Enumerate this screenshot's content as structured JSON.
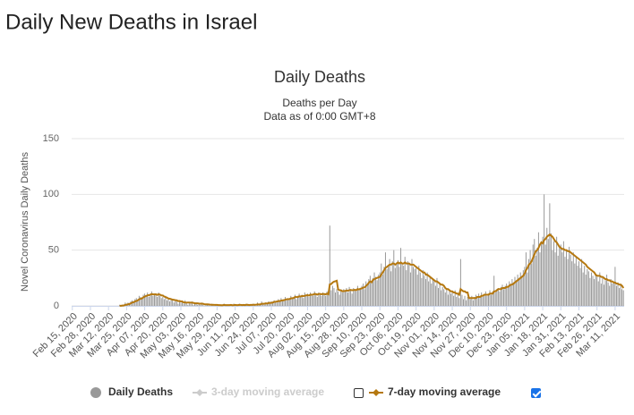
{
  "page_title": "Daily New Deaths in Israel",
  "chart_data": {
    "type": "bar_line",
    "title": "Daily Deaths",
    "subtitle": [
      "Deaths per Day",
      "Data as of 0:00 GMT+8"
    ],
    "y_label": "Novel Coronavirus Daily Deaths",
    "ylim": [
      0,
      150
    ],
    "yticks": [
      0,
      50,
      100,
      150
    ],
    "grid": true,
    "legend": "bottom",
    "categories": [
      "Feb 15, 2020",
      null,
      null,
      null,
      null,
      null,
      null,
      null,
      null,
      null,
      null,
      null,
      null,
      "Feb 28, 2020",
      null,
      null,
      null,
      null,
      null,
      null,
      null,
      null,
      null,
      null,
      null,
      null,
      "Mar 12, 2020",
      null,
      null,
      null,
      null,
      null,
      null,
      null,
      null,
      null,
      null,
      null,
      null,
      "Mar 25, 2020",
      null,
      null,
      null,
      null,
      null,
      null,
      null,
      null,
      null,
      null,
      null,
      null,
      "Apr 07, 2020",
      null,
      null,
      null,
      null,
      null,
      null,
      null,
      null,
      null,
      null,
      null,
      null,
      "Apr 20, 2020",
      null,
      null,
      null,
      null,
      null,
      null,
      null,
      null,
      null,
      null,
      null,
      null,
      "May 03, 2020",
      null,
      null,
      null,
      null,
      null,
      null,
      null,
      null,
      null,
      null,
      null,
      null,
      "May 16, 2020",
      null,
      null,
      null,
      null,
      null,
      null,
      null,
      null,
      null,
      null,
      null,
      null,
      "May 29, 2020",
      null,
      null,
      null,
      null,
      null,
      null,
      null,
      null,
      null,
      null,
      null,
      null,
      "Jun 11, 2020",
      null,
      null,
      null,
      null,
      null,
      null,
      null,
      null,
      null,
      null,
      null,
      null,
      "Jun 24, 2020",
      null,
      null,
      null,
      null,
      null,
      null,
      null,
      null,
      null,
      null,
      null,
      null,
      "Jul 07, 2020",
      null,
      null,
      null,
      null,
      null,
      null,
      null,
      null,
      null,
      null,
      null,
      null,
      "Jul 20, 2020",
      null,
      null,
      null,
      null,
      null,
      null,
      null,
      null,
      null,
      null,
      null,
      null,
      "Aug 02, 2020",
      null,
      null,
      null,
      null,
      null,
      null,
      null,
      null,
      null,
      null,
      null,
      null,
      "Aug 15, 2020",
      null,
      null,
      null,
      null,
      null,
      null,
      null,
      null,
      null,
      null,
      null,
      null,
      "Aug 28, 2020",
      null,
      null,
      null,
      null,
      null,
      null,
      null,
      null,
      null,
      null,
      null,
      null,
      "Sep 10, 2020",
      null,
      null,
      null,
      null,
      null,
      null,
      null,
      null,
      null,
      null,
      null,
      null,
      "Sep 23, 2020",
      null,
      null,
      null,
      null,
      null,
      null,
      null,
      null,
      null,
      null,
      null,
      null,
      "Oct 06, 2020",
      null,
      null,
      null,
      null,
      null,
      null,
      null,
      null,
      null,
      null,
      null,
      null,
      "Oct 19, 2020",
      null,
      null,
      null,
      null,
      null,
      null,
      null,
      null,
      null,
      null,
      null,
      null,
      "Nov 01, 2020",
      null,
      null,
      null,
      null,
      null,
      null,
      null,
      null,
      null,
      null,
      null,
      null,
      "Nov 14, 2020",
      null,
      null,
      null,
      null,
      null,
      null,
      null,
      null,
      null,
      null,
      null,
      null,
      "Nov 27, 2020",
      null,
      null,
      null,
      null,
      null,
      null,
      null,
      null,
      null,
      null,
      null,
      null,
      "Dec 10, 2020",
      null,
      null,
      null,
      null,
      null,
      null,
      null,
      null,
      null,
      null,
      null,
      null,
      "Dec 23, 2020",
      null,
      null,
      null,
      null,
      null,
      null,
      null,
      null,
      null,
      null,
      null,
      null,
      "Jan 05, 2021",
      null,
      null,
      null,
      null,
      null,
      null,
      null,
      null,
      null,
      null,
      null,
      null,
      "Jan 18, 2021",
      null,
      null,
      null,
      null,
      null,
      null,
      null,
      null,
      null,
      null,
      null,
      null,
      "Jan 31, 2021",
      null,
      null,
      null,
      null,
      null,
      null,
      null,
      null,
      null,
      null,
      null,
      null,
      "Feb 13, 2021",
      null,
      null,
      null,
      null,
      null,
      null,
      null,
      null,
      null,
      null,
      null,
      null,
      "Feb 26, 2021",
      null,
      null,
      null,
      null,
      null,
      null,
      null,
      null,
      null,
      null,
      null,
      null,
      "Mar 11, 2021",
      null,
      null,
      null,
      null,
      null,
      null
    ],
    "series": [
      {
        "name": "Daily Deaths",
        "kind": "bar",
        "color": "#999999",
        "visible": true,
        "values": [
          0,
          0,
          0,
          0,
          0,
          0,
          0,
          0,
          0,
          0,
          0,
          0,
          0,
          0,
          0,
          0,
          0,
          0,
          0,
          0,
          0,
          0,
          0,
          0,
          0,
          0,
          0,
          0,
          0,
          0,
          0,
          0,
          0,
          0,
          1,
          0,
          1,
          1,
          3,
          2,
          3,
          2,
          4,
          5,
          4,
          6,
          7,
          6,
          9,
          8,
          7,
          10,
          11,
          9,
          12,
          8,
          10,
          13,
          9,
          11,
          10,
          8,
          12,
          9,
          7,
          8,
          6,
          9,
          5,
          7,
          4,
          6,
          5,
          3,
          6,
          4,
          2,
          5,
          3,
          4,
          2,
          5,
          3,
          1,
          3,
          2,
          4,
          1,
          2,
          3,
          1,
          2,
          1,
          3,
          1,
          0,
          2,
          1,
          1,
          0,
          2,
          1,
          0,
          1,
          1,
          0,
          1,
          0,
          1,
          2,
          0,
          1,
          0,
          1,
          1,
          0,
          2,
          1,
          0,
          1,
          2,
          0,
          1,
          1,
          0,
          2,
          1,
          0,
          1,
          1,
          2,
          1,
          0,
          3,
          1,
          2,
          4,
          2,
          1,
          3,
          2,
          4,
          3,
          4,
          3,
          5,
          4,
          3,
          6,
          5,
          7,
          4,
          6,
          8,
          5,
          7,
          6,
          9,
          7,
          8,
          10,
          6,
          9,
          11,
          8,
          10,
          7,
          12,
          9,
          11,
          8,
          12,
          10,
          9,
          13,
          11,
          8,
          12,
          10,
          9,
          12,
          11,
          9,
          13,
          10,
          72,
          14,
          18,
          16,
          12,
          15,
          13,
          10,
          14,
          12,
          15,
          13,
          16,
          12,
          17,
          14,
          11,
          16,
          15,
          13,
          18,
          14,
          16,
          18,
          20,
          15,
          22,
          19,
          24,
          27,
          21,
          25,
          30,
          26,
          23,
          28,
          30,
          38,
          28,
          35,
          48,
          33,
          36,
          42,
          31,
          40,
          50,
          34,
          39,
          41,
          35,
          52,
          38,
          36,
          44,
          32,
          40,
          38,
          30,
          42,
          35,
          33,
          34,
          28,
          36,
          30,
          25,
          32,
          27,
          24,
          30,
          22,
          26,
          20,
          24,
          22,
          18,
          25,
          16,
          20,
          14,
          17,
          15,
          12,
          16,
          10,
          13,
          11,
          12,
          9,
          14,
          8,
          11,
          7,
          42,
          10,
          6,
          9,
          5,
          8,
          7,
          6,
          9,
          5,
          8,
          10,
          7,
          11,
          9,
          12,
          8,
          10,
          13,
          9,
          11,
          14,
          10,
          13,
          27,
          12,
          15,
          16,
          13,
          17,
          19,
          15,
          18,
          20,
          17,
          22,
          19,
          24,
          21,
          26,
          23,
          28,
          25,
          30,
          27,
          32,
          35,
          48,
          30,
          42,
          50,
          38,
          55,
          60,
          45,
          52,
          66,
          48,
          58,
          62,
          100,
          55,
          70,
          60,
          92,
          65,
          50,
          58,
          48,
          62,
          45,
          52,
          55,
          48,
          58,
          44,
          50,
          42,
          53,
          46,
          40,
          48,
          38,
          44,
          36,
          40,
          34,
          42,
          30,
          36,
          28,
          33,
          31,
          25,
          30,
          27,
          24,
          29,
          26,
          22,
          30,
          20,
          25,
          19,
          23,
          28,
          21,
          18,
          24,
          20,
          22,
          35,
          18,
          21,
          16,
          20,
          15,
          14
        ]
      },
      {
        "name": "3-day moving average",
        "kind": "line",
        "color": "#cccccc",
        "visible": false
      },
      {
        "name": "7-day moving average",
        "kind": "line",
        "color": "#b5780f",
        "visible": true,
        "values": [
          null,
          null,
          null,
          null,
          null,
          null,
          null,
          null,
          null,
          null,
          null,
          null,
          null,
          null,
          null,
          null,
          null,
          null,
          null,
          null,
          null,
          null,
          null,
          null,
          null,
          null,
          null,
          null,
          null,
          null,
          null,
          null,
          null,
          null,
          0.1,
          0.1,
          0.3,
          0.4,
          0.9,
          1.1,
          1.4,
          1.7,
          2.3,
          3,
          3.3,
          4,
          4.4,
          4.9,
          5.9,
          6.4,
          6.7,
          7.6,
          8.3,
          8.9,
          9.4,
          9.6,
          10.1,
          10.6,
          10.3,
          10.3,
          10.4,
          9.9,
          10.4,
          10.1,
          9.4,
          9.3,
          8.4,
          7.9,
          7.4,
          6.6,
          6.4,
          6.1,
          5.6,
          5.4,
          5.1,
          5,
          4.3,
          4.4,
          4,
          4,
          3.1,
          3.1,
          2.9,
          3,
          3,
          2.9,
          2.9,
          2.7,
          2.3,
          2.3,
          2.3,
          2.1,
          2,
          2,
          1.9,
          1.4,
          1.4,
          1.4,
          1.3,
          1.1,
          1,
          1,
          0.9,
          0.9,
          0.9,
          0.7,
          0.7,
          0.6,
          0.6,
          0.9,
          0.7,
          0.7,
          0.7,
          0.7,
          0.9,
          0.6,
          0.7,
          0.9,
          0.7,
          0.7,
          0.9,
          0.9,
          0.7,
          0.9,
          0.7,
          1,
          1,
          0.7,
          0.9,
          0.9,
          1,
          1,
          1,
          1.3,
          1.3,
          1.3,
          1.9,
          1.9,
          1.9,
          2.3,
          2.1,
          2.6,
          2.7,
          2.7,
          3,
          3.6,
          3.7,
          3.9,
          4.3,
          4.3,
          4.7,
          4.9,
          5.1,
          5.6,
          5.9,
          6,
          6.1,
          6.7,
          6.9,
          7,
          8,
          7.9,
          7.9,
          8.6,
          8.4,
          8.9,
          8.7,
          9.1,
          9.4,
          9.6,
          9.3,
          10,
          10,
          10.1,
          10.7,
          10.6,
          10.1,
          10.7,
          10.7,
          10.4,
          10.7,
          10.6,
          10.4,
          11,
          10.4,
          19.3,
          19.6,
          20.9,
          21.7,
          22.1,
          22.6,
          14.7,
          14,
          14,
          13.1,
          13.3,
          13.3,
          13.9,
          13.6,
          14.1,
          14.3,
          14,
          14.1,
          14.4,
          14,
          15.1,
          14.7,
          15.4,
          15.7,
          16.4,
          16.6,
          17.9,
          19,
          20.7,
          22,
          21.1,
          23.3,
          24,
          24.6,
          25.1,
          25.6,
          26,
          28,
          30,
          32,
          34,
          35,
          36,
          37,
          37,
          38,
          38,
          37,
          38,
          39,
          38,
          39,
          38,
          38,
          39,
          38,
          38,
          38,
          37,
          37,
          37,
          36,
          35,
          34,
          33,
          32,
          31,
          30,
          30,
          28,
          28,
          27,
          26,
          25,
          24,
          23,
          22,
          22,
          21,
          20,
          19,
          19,
          18,
          16,
          15,
          15,
          14,
          13,
          13,
          12,
          12,
          11,
          11,
          10,
          15,
          14,
          13,
          13,
          12,
          12,
          7,
          7,
          7,
          7,
          7,
          7,
          8,
          8,
          8,
          9,
          9,
          10,
          10,
          10,
          10,
          11,
          11,
          11,
          13,
          13,
          14,
          15,
          15,
          15,
          16,
          16,
          16,
          17,
          17,
          18,
          19,
          19,
          20,
          21,
          22,
          23,
          24,
          25,
          26,
          27,
          29,
          32,
          34,
          37,
          38,
          40,
          43,
          46,
          49,
          50,
          52,
          55,
          57,
          56,
          59,
          60,
          62,
          63,
          64,
          63,
          62,
          60,
          58,
          57,
          55,
          53,
          52,
          51,
          51,
          50,
          50,
          49,
          49,
          48,
          47,
          46,
          45,
          44,
          43,
          42,
          41,
          40,
          39,
          38,
          37,
          35,
          34,
          33,
          32,
          31,
          30,
          28,
          27,
          27,
          27,
          26,
          26,
          25,
          24,
          24,
          23,
          23,
          22,
          22,
          21,
          21,
          20,
          20,
          19,
          19,
          18,
          16
        ]
      }
    ]
  }
}
